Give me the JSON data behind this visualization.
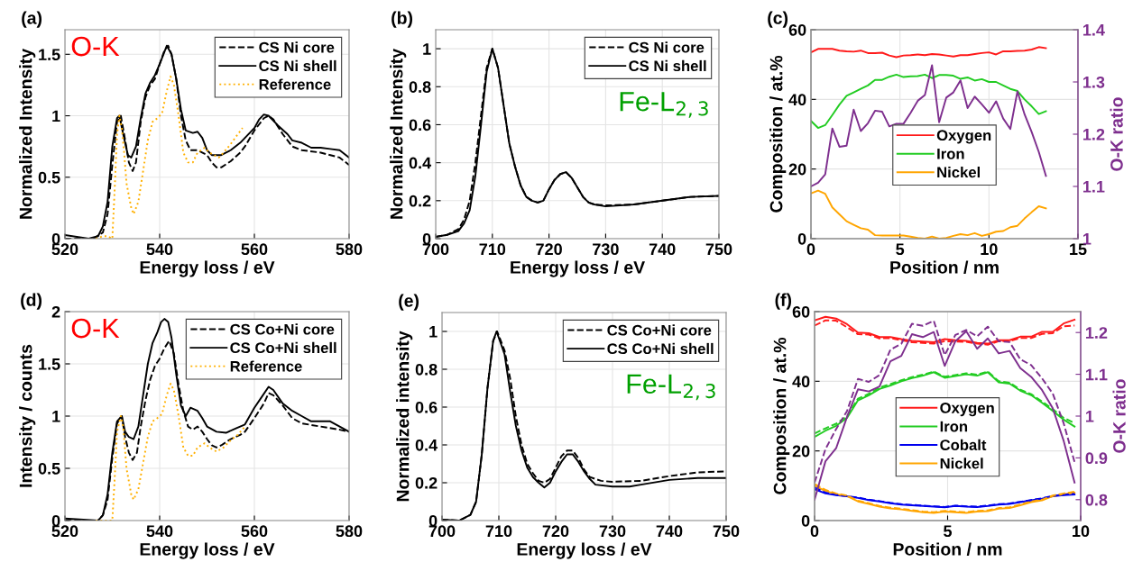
{
  "chart_data": [
    {
      "type": "line",
      "xlabel": "Energy loss / eV",
      "ylabel": "Normalized Intensity",
      "annotations": [
        "(a)",
        "O-K"
      ],
      "xlim": [
        520,
        580
      ],
      "xticks": [
        520,
        540,
        560,
        580
      ],
      "ylim": [
        0,
        1.7
      ],
      "yticks": [
        0,
        0.5,
        1,
        1.5
      ],
      "grid": true,
      "legend": "top right",
      "series": [
        {
          "name": "CS Ni core",
          "color": "#000000",
          "line_style": "dashed",
          "x": [
            520,
            526,
            528,
            529,
            530,
            531,
            531.8,
            532.5,
            533.5,
            534.3,
            535,
            536,
            537,
            538,
            539,
            540,
            541,
            541.8,
            542.5,
            543.5,
            544.5,
            545.5,
            546.5,
            548,
            550,
            551,
            552,
            553,
            555,
            557,
            558,
            560,
            562,
            563,
            564,
            566,
            568,
            570,
            574,
            578,
            580
          ],
          "values": [
            0,
            0,
            0.05,
            0.2,
            0.6,
            0.95,
            1.0,
            0.85,
            0.62,
            0.55,
            0.62,
            0.95,
            1.15,
            1.25,
            1.3,
            1.42,
            1.53,
            1.57,
            1.5,
            1.3,
            1.0,
            0.8,
            0.72,
            0.72,
            0.68,
            0.62,
            0.58,
            0.58,
            0.63,
            0.7,
            0.75,
            0.88,
            0.98,
            1.0,
            0.97,
            0.85,
            0.75,
            0.72,
            0.7,
            0.66,
            0.6
          ]
        },
        {
          "name": "CS Ni shell",
          "color": "#000000",
          "line_style": "solid",
          "x": [
            520,
            525,
            527,
            528,
            529,
            530,
            531,
            531.5,
            532.3,
            533.3,
            534,
            535,
            536,
            537,
            538,
            539,
            540,
            541,
            541.5,
            542.5,
            543.5,
            544.5,
            545.5,
            547,
            548,
            549,
            550,
            551,
            553,
            555,
            557,
            558,
            560,
            561,
            562,
            563,
            565,
            567,
            568,
            570,
            572,
            574,
            576,
            578,
            580
          ],
          "values": [
            0.03,
            0,
            0.02,
            0.1,
            0.3,
            0.75,
            0.98,
            1.0,
            0.85,
            0.68,
            0.66,
            0.75,
            0.98,
            1.18,
            1.27,
            1.33,
            1.42,
            1.52,
            1.57,
            1.5,
            1.3,
            1.05,
            0.88,
            0.86,
            0.87,
            0.82,
            0.72,
            0.68,
            0.68,
            0.72,
            0.78,
            0.82,
            0.9,
            0.97,
            1.01,
            1.0,
            0.92,
            0.85,
            0.8,
            0.78,
            0.74,
            0.74,
            0.73,
            0.72,
            0.66
          ]
        },
        {
          "name": "Reference",
          "color": "#ffb000",
          "line_style": "dotted",
          "x": [
            526.5,
            528,
            529,
            530,
            530.5,
            531,
            531.5,
            532,
            532.5,
            533,
            534,
            534.5,
            535.5,
            536.5,
            537.5,
            538.5,
            539.5,
            540.5,
            541.5,
            542.3,
            543,
            544,
            545,
            546,
            547,
            548,
            549.5,
            550.5,
            551.5,
            552.5,
            553.5,
            555,
            556.5,
            557.5
          ],
          "values": [
            0,
            0.02,
            0.02,
            0,
            0.4,
            0.85,
            1.0,
            0.9,
            0.7,
            0.45,
            0.25,
            0.2,
            0.3,
            0.55,
            0.8,
            0.95,
            0.98,
            1.02,
            1.2,
            1.32,
            1.25,
            1.0,
            0.7,
            0.62,
            0.62,
            0.7,
            0.74,
            0.7,
            0.68,
            0.66,
            0.7,
            0.77,
            0.85,
            0.9
          ]
        }
      ]
    },
    {
      "type": "line",
      "xlabel": "Energy loss / eV",
      "ylabel": "Normalized Intensity",
      "annotations": [
        "(b)",
        "Fe-L$_{2,3}$"
      ],
      "xlim": [
        700,
        750
      ],
      "xticks": [
        700,
        710,
        720,
        730,
        740,
        750
      ],
      "ylim": [
        0,
        1.1
      ],
      "yticks": [
        0,
        0.2,
        0.4,
        0.6,
        0.8,
        1
      ],
      "grid": true,
      "legend": "top right",
      "series": [
        {
          "name": "CS Ni core",
          "color": "#000000",
          "line_style": "dashed",
          "x": [
            700,
            702,
            704,
            705,
            706,
            707,
            708,
            709,
            710,
            711,
            712,
            713,
            714,
            715,
            716,
            717,
            718,
            719,
            720,
            721,
            722,
            723,
            724,
            725,
            726,
            727,
            728,
            730,
            735,
            740,
            745,
            750
          ],
          "values": [
            0.01,
            0.02,
            0.05,
            0.1,
            0.2,
            0.4,
            0.65,
            0.9,
            1.0,
            0.9,
            0.7,
            0.5,
            0.38,
            0.28,
            0.22,
            0.2,
            0.19,
            0.2,
            0.26,
            0.31,
            0.34,
            0.35,
            0.32,
            0.27,
            0.22,
            0.19,
            0.18,
            0.175,
            0.18,
            0.2,
            0.22,
            0.225
          ]
        },
        {
          "name": "CS Ni shell",
          "color": "#000000",
          "line_style": "solid",
          "x": [
            700,
            702,
            704,
            705,
            706,
            707,
            708,
            709,
            710,
            711,
            712,
            713,
            714,
            715,
            716,
            717,
            718,
            719,
            720,
            721,
            722,
            723,
            724,
            725,
            726,
            727,
            728,
            730,
            735,
            740,
            745,
            750
          ],
          "values": [
            0.01,
            0.02,
            0.04,
            0.08,
            0.15,
            0.33,
            0.6,
            0.88,
            1.0,
            0.9,
            0.7,
            0.5,
            0.38,
            0.28,
            0.22,
            0.2,
            0.19,
            0.2,
            0.26,
            0.31,
            0.34,
            0.35,
            0.32,
            0.27,
            0.22,
            0.19,
            0.18,
            0.17,
            0.18,
            0.2,
            0.22,
            0.225
          ]
        }
      ]
    },
    {
      "type": "line",
      "xlabel": "Position / nm",
      "ylabel": "Composition / at.%",
      "y2label": "O-K ratio",
      "annotations": [
        "(c)"
      ],
      "xlim": [
        0,
        15
      ],
      "xticks": [
        0,
        5,
        10,
        15
      ],
      "ylim": [
        0,
        60
      ],
      "yticks": [
        0,
        20,
        40,
        60
      ],
      "y2lim": [
        1,
        1.4
      ],
      "y2ticks": [
        1,
        1.1,
        1.2,
        1.3,
        1.4
      ],
      "grid": true,
      "legend": "center",
      "series": [
        {
          "name": "Oxygen",
          "color": "#ff1a1a",
          "line_style": "solid",
          "x": [
            0,
            0.4,
            0.8,
            1.2,
            1.6,
            2.0,
            2.4,
            2.8,
            3.2,
            3.6,
            4.0,
            4.4,
            4.8,
            5.2,
            5.6,
            6.0,
            6.4,
            6.8,
            7.2,
            7.6,
            8.0,
            8.4,
            8.8,
            9.2,
            9.6,
            10.0,
            10.4,
            10.8,
            11.2,
            11.6,
            12.0,
            12.4,
            12.8,
            13.2
          ],
          "values": [
            53.5,
            54.5,
            54.5,
            54.5,
            54,
            53.8,
            53.7,
            54,
            53.3,
            53.3,
            53.4,
            52.6,
            52.1,
            52.6,
            52.7,
            52.9,
            52.7,
            53,
            52.9,
            52.6,
            52.3,
            52.7,
            52.7,
            53,
            53.3,
            53.5,
            52.9,
            53.8,
            53.8,
            53.9,
            54,
            54.3,
            55,
            54.7
          ]
        },
        {
          "name": "Iron",
          "color": "#22cc22",
          "line_style": "solid",
          "x": [
            0,
            0.4,
            0.8,
            1.2,
            1.6,
            2.0,
            2.4,
            2.8,
            3.2,
            3.6,
            4.0,
            4.4,
            4.8,
            5.2,
            5.6,
            6.0,
            6.4,
            6.8,
            7.2,
            7.6,
            8.0,
            8.4,
            8.8,
            9.2,
            9.6,
            10.0,
            10.4,
            10.8,
            11.2,
            11.6,
            12.0,
            12.4,
            12.8,
            13.2
          ],
          "values": [
            33.8,
            31.8,
            32.6,
            35.5,
            38.5,
            41,
            42,
            43,
            44,
            45.6,
            45.6,
            46.5,
            47.1,
            46.4,
            46.6,
            46.7,
            47.1,
            46.1,
            47,
            47,
            46.8,
            45.9,
            46.3,
            45.4,
            45.8,
            45,
            45,
            44,
            43,
            42.4,
            40,
            38,
            35.8,
            36.6
          ]
        },
        {
          "name": "Nickel",
          "color": "#ffa500",
          "line_style": "solid",
          "x": [
            0,
            0.4,
            0.8,
            1.2,
            1.6,
            2.0,
            2.4,
            2.8,
            3.2,
            3.6,
            4.0,
            4.4,
            4.8,
            5.2,
            5.6,
            6.0,
            6.4,
            6.8,
            7.2,
            7.6,
            8.0,
            8.4,
            8.8,
            9.2,
            9.6,
            10.0,
            10.4,
            10.8,
            11.2,
            11.6,
            12.0,
            12.4,
            12.8,
            13.2
          ],
          "values": [
            13,
            13.8,
            12.9,
            9,
            7,
            5,
            4,
            3,
            2.6,
            1,
            0.9,
            0.9,
            0.9,
            0.9,
            0.6,
            0.2,
            0,
            0.6,
            0,
            0.2,
            0.8,
            1.3,
            1,
            1.6,
            0.8,
            1.3,
            2,
            2.2,
            3.3,
            3.7,
            5.8,
            7.6,
            9.3,
            8.7
          ]
        },
        {
          "color": "#7e2f8e",
          "line_style": "solid",
          "axis": "y2",
          "x": [
            0,
            0.4,
            0.8,
            1.2,
            1.6,
            2.0,
            2.4,
            2.8,
            3.2,
            3.6,
            4.0,
            4.4,
            4.8,
            5.2,
            5.6,
            6.0,
            6.4,
            6.8,
            7.2,
            7.6,
            8.0,
            8.4,
            8.8,
            9.2,
            9.6,
            10.0,
            10.4,
            10.8,
            11.2,
            11.6,
            12.0,
            12.4,
            12.8,
            13.2
          ],
          "values": [
            1.1,
            1.107,
            1.123,
            1.211,
            1.176,
            1.178,
            1.247,
            1.206,
            1.221,
            1.245,
            1.243,
            1.215,
            1.22,
            1.22,
            1.241,
            1.264,
            1.275,
            1.332,
            1.223,
            1.27,
            1.28,
            1.303,
            1.25,
            1.272,
            1.257,
            1.241,
            1.263,
            1.23,
            1.21,
            1.282,
            1.238,
            1.204,
            1.166,
            1.12
          ]
        }
      ]
    },
    {
      "type": "line",
      "xlabel": "Energy loss / eV",
      "ylabel": "Intensity / counts",
      "annotations": [
        "(d)",
        "O-K"
      ],
      "xlim": [
        520,
        580
      ],
      "xticks": [
        520,
        540,
        560,
        580
      ],
      "ylim": [
        0,
        2
      ],
      "yticks": [
        0,
        0.5,
        1,
        1.5,
        2
      ],
      "grid": true,
      "legend": "top right",
      "series": [
        {
          "name": "CS Co+Ni core",
          "color": "#000000",
          "line_style": "dashed",
          "x": [
            520,
            527,
            528,
            529,
            530,
            531,
            532,
            532.7,
            533.5,
            534.3,
            535.2,
            536,
            537,
            538,
            539,
            540,
            541,
            542,
            543,
            544,
            545,
            546,
            547,
            548,
            549,
            550,
            551,
            552,
            553,
            555,
            557,
            558,
            560,
            562,
            563,
            564,
            566,
            568,
            570,
            574,
            578,
            580
          ],
          "values": [
            0,
            0,
            0.05,
            0.2,
            0.6,
            0.93,
            1.0,
            0.8,
            0.65,
            0.58,
            0.65,
            0.9,
            1.15,
            1.35,
            1.48,
            1.55,
            1.65,
            1.72,
            1.6,
            1.3,
            1.05,
            0.9,
            0.87,
            0.9,
            0.85,
            0.78,
            0.72,
            0.7,
            0.72,
            0.78,
            0.82,
            0.85,
            0.98,
            1.12,
            1.22,
            1.2,
            1.1,
            0.98,
            0.93,
            0.9,
            0.87,
            0.85
          ]
        },
        {
          "name": "CS Co+Ni shell",
          "color": "#000000",
          "line_style": "solid",
          "x": [
            520,
            527,
            528,
            529,
            530,
            531,
            532,
            532.7,
            533.5,
            534.5,
            535.5,
            536.5,
            537.5,
            538.5,
            539.5,
            540.3,
            541,
            541.8,
            542.5,
            543.5,
            544.5,
            545.5,
            546.5,
            548,
            549,
            550,
            552,
            554,
            556,
            558,
            560,
            561.5,
            563,
            564,
            566,
            568,
            570,
            572,
            574,
            576,
            578,
            580
          ],
          "values": [
            0.02,
            0,
            0.05,
            0.25,
            0.65,
            0.95,
            1.0,
            0.85,
            0.8,
            0.78,
            0.9,
            1.2,
            1.5,
            1.7,
            1.8,
            1.9,
            1.93,
            1.9,
            1.75,
            1.4,
            1.1,
            1.0,
            1.08,
            1.05,
            0.98,
            0.9,
            0.85,
            0.84,
            0.88,
            0.92,
            1.08,
            1.18,
            1.28,
            1.25,
            1.12,
            1.05,
            1.0,
            0.95,
            0.95,
            0.95,
            0.9,
            0.85
          ]
        },
        {
          "name": "Reference",
          "color": "#ffb000",
          "line_style": "dotted",
          "x": [
            526.5,
            530,
            530.5,
            531,
            531.8,
            532.3,
            533,
            534,
            534.5,
            535.5,
            536.5,
            537.5,
            538.5,
            539.5,
            540.5,
            541.5,
            542.3,
            543,
            544,
            545,
            546,
            547,
            548,
            549.5,
            550.5,
            552,
            553.5,
            555,
            556.5,
            558
          ],
          "values": [
            0,
            0,
            0.4,
            0.85,
            1.0,
            0.9,
            0.5,
            0.25,
            0.2,
            0.3,
            0.55,
            0.8,
            0.95,
            0.98,
            1.02,
            1.2,
            1.31,
            1.25,
            1.0,
            0.7,
            0.62,
            0.62,
            0.7,
            0.74,
            0.7,
            0.66,
            0.7,
            0.77,
            0.82,
            0.9
          ]
        }
      ]
    },
    {
      "type": "line",
      "xlabel": "Energy loss / eV",
      "ylabel": "Normalized intensity",
      "annotations": [
        "(e)",
        "Fe-L$_{2,3}$"
      ],
      "xlim": [
        700,
        750
      ],
      "xticks": [
        700,
        710,
        720,
        730,
        740,
        750
      ],
      "ylim": [
        0,
        1.1
      ],
      "yticks": [
        0,
        0.2,
        0.4,
        0.6,
        0.8,
        1
      ],
      "grid": true,
      "legend": "top right",
      "series": [
        {
          "name": "CS Co+Ni core",
          "color": "#000000",
          "line_style": "dashed",
          "x": [
            700,
            703,
            705,
            706,
            707,
            708,
            709,
            709.7,
            711,
            712,
            713,
            714,
            715,
            716,
            717,
            718,
            719,
            720,
            721,
            722,
            723,
            724,
            725,
            726,
            728,
            730,
            735,
            740,
            745,
            750
          ],
          "values": [
            0.005,
            0,
            0.03,
            0.1,
            0.35,
            0.7,
            0.95,
            1.0,
            0.9,
            0.75,
            0.55,
            0.4,
            0.3,
            0.25,
            0.21,
            0.2,
            0.22,
            0.28,
            0.34,
            0.37,
            0.37,
            0.33,
            0.27,
            0.23,
            0.21,
            0.205,
            0.21,
            0.235,
            0.255,
            0.26
          ]
        },
        {
          "name": "CS Co+Ni shell",
          "color": "#000000",
          "line_style": "solid",
          "x": [
            700,
            703,
            705,
            706,
            707,
            708,
            709,
            709.6,
            711,
            712,
            713,
            714,
            715,
            716,
            717,
            718,
            719,
            720,
            721,
            722,
            723,
            724,
            725,
            726,
            727,
            730,
            733,
            735,
            740,
            745,
            750
          ],
          "values": [
            0.005,
            0,
            0.03,
            0.1,
            0.35,
            0.7,
            0.95,
            1.0,
            0.88,
            0.68,
            0.5,
            0.37,
            0.28,
            0.23,
            0.2,
            0.175,
            0.2,
            0.26,
            0.31,
            0.35,
            0.35,
            0.31,
            0.26,
            0.22,
            0.19,
            0.18,
            0.18,
            0.19,
            0.215,
            0.225,
            0.225
          ]
        }
      ]
    },
    {
      "type": "line",
      "xlabel": "Position / nm",
      "ylabel": "Composition / at.%",
      "y2label": "O-K ratio",
      "annotations": [
        "(f)"
      ],
      "xlim": [
        0,
        10
      ],
      "xticks": [
        0,
        5,
        10
      ],
      "ylim": [
        0,
        60
      ],
      "yticks": [
        0,
        20,
        40,
        60
      ],
      "y2lim": [
        0.75,
        1.25
      ],
      "y2ticks": [
        0.8,
        0.9,
        1,
        1.1,
        1.2
      ],
      "grid": true,
      "legend": "center",
      "series": [
        {
          "name": "Oxygen",
          "color": "#ff1a1a",
          "line_style": "solid",
          "x": [
            0,
            0.41,
            0.81,
            1.22,
            1.63,
            2.04,
            2.44,
            2.85,
            3.26,
            3.66,
            4.07,
            4.48,
            4.89,
            5.29,
            5.7,
            6.11,
            6.51,
            6.92,
            7.33,
            7.73,
            8.14,
            8.55,
            8.95,
            9.36,
            9.77
          ],
          "values": [
            57.5,
            58.5,
            58,
            56.4,
            54,
            53.8,
            52.7,
            52.7,
            52.1,
            51.6,
            51.4,
            51.2,
            52.1,
            51.8,
            51.6,
            51,
            50.8,
            51.8,
            51.8,
            52.8,
            52.8,
            54.2,
            54.2,
            56.6,
            57.7
          ]
        },
        {
          "name": "Iron",
          "color": "#22cc22",
          "line_style": "solid",
          "x": [
            0,
            0.41,
            0.81,
            1.22,
            1.63,
            2.04,
            2.44,
            2.85,
            3.26,
            3.66,
            4.07,
            4.48,
            4.89,
            5.29,
            5.7,
            6.11,
            6.51,
            6.92,
            7.33,
            7.73,
            8.14,
            8.55,
            8.95,
            9.36,
            9.77
          ],
          "values": [
            24,
            25.8,
            27.2,
            29.5,
            34.5,
            36,
            37.8,
            38.8,
            40,
            40.9,
            41.6,
            42.6,
            41,
            41.5,
            42,
            41.6,
            42.6,
            39.7,
            39.3,
            37.3,
            36,
            33.8,
            31.5,
            29,
            27
          ]
        },
        {
          "name": "Cobalt",
          "color": "#0000ee",
          "line_style": "solid",
          "x": [
            0,
            0.41,
            0.81,
            1.22,
            1.63,
            2.04,
            2.44,
            2.85,
            3.26,
            3.66,
            4.07,
            4.48,
            4.89,
            5.29,
            5.7,
            6.11,
            6.51,
            6.92,
            7.33,
            7.73,
            8.14,
            8.55,
            8.95,
            9.36,
            9.77
          ],
          "values": [
            9,
            7.8,
            7.3,
            7,
            6.5,
            5.9,
            5.5,
            5,
            4.6,
            4.4,
            4.2,
            4,
            3.8,
            4.2,
            4,
            3.9,
            4.2,
            4.6,
            4.8,
            5.3,
            5.8,
            6.3,
            7,
            7.3,
            7.5
          ]
        },
        {
          "name": "Nickel",
          "color": "#ffa500",
          "line_style": "solid",
          "x": [
            0,
            0.41,
            0.81,
            1.22,
            1.63,
            2.04,
            2.44,
            2.85,
            3.26,
            3.66,
            4.07,
            4.48,
            4.89,
            5.29,
            5.7,
            6.11,
            6.51,
            6.92,
            7.33,
            7.73,
            8.14,
            8.55,
            8.95,
            9.36,
            9.77
          ],
          "values": [
            10,
            8.5,
            7.6,
            7,
            5.5,
            4.8,
            4,
            3.5,
            3.2,
            2.8,
            2.4,
            2.2,
            2.6,
            2.4,
            2.2,
            2.6,
            2.7,
            3.4,
            3.6,
            4.4,
            5.3,
            5.8,
            7,
            7.6,
            8
          ]
        },
        {
          "color": "#ff1a1a",
          "line_style": "dashed",
          "x": [
            0,
            0.41,
            0.81,
            1.22,
            1.63,
            2.04,
            2.44,
            2.85,
            3.26,
            3.66,
            4.07,
            4.48,
            4.89,
            5.29,
            5.7,
            6.11,
            6.51,
            6.92,
            7.33,
            7.73,
            8.14,
            8.55,
            8.95,
            9.36,
            9.77
          ],
          "values": [
            56,
            57.5,
            57.4,
            55.5,
            53.5,
            53.4,
            52.3,
            52.4,
            51.8,
            51.2,
            51,
            50.8,
            51.5,
            51.4,
            51.3,
            50.8,
            50.5,
            51.5,
            51.5,
            52.4,
            52.4,
            53.6,
            53.8,
            55.8,
            56
          ]
        },
        {
          "color": "#22cc22",
          "line_style": "dashed",
          "x": [
            0,
            0.41,
            0.81,
            1.22,
            1.63,
            2.04,
            2.44,
            2.85,
            3.26,
            3.66,
            4.07,
            4.48,
            4.89,
            5.29,
            5.7,
            6.11,
            6.51,
            6.92,
            7.33,
            7.73,
            8.14,
            8.55,
            8.95,
            9.36,
            9.77
          ],
          "values": [
            25,
            26.5,
            27.8,
            30,
            35,
            36.4,
            38.2,
            39.2,
            40.3,
            41.2,
            41.9,
            42.8,
            41.3,
            41.8,
            42.3,
            41.9,
            42.8,
            40,
            39.6,
            37.6,
            36.3,
            34.2,
            32,
            29.5,
            28
          ]
        },
        {
          "color": "#0000ee",
          "line_style": "dashed",
          "x": [
            0,
            0.41,
            0.81,
            1.22,
            1.63,
            2.04,
            2.44,
            2.85,
            3.26,
            3.66,
            4.07,
            4.48,
            4.89,
            5.29,
            5.7,
            6.11,
            6.51,
            6.92,
            7.33,
            7.73,
            8.14,
            8.55,
            8.95,
            9.36,
            9.77
          ],
          "values": [
            9.5,
            8,
            7.4,
            7,
            6.6,
            6,
            5.6,
            5.1,
            4.7,
            4.5,
            4.3,
            4.1,
            3.9,
            4.3,
            4.1,
            4,
            4.3,
            4.7,
            4.9,
            5.4,
            5.9,
            6.4,
            7.1,
            7.4,
            7.7
          ]
        },
        {
          "color": "#ffa500",
          "line_style": "dashed",
          "x": [
            0,
            0.41,
            0.81,
            1.22,
            1.63,
            2.04,
            2.44,
            2.85,
            3.26,
            3.66,
            4.07,
            4.48,
            4.89,
            5.29,
            5.7,
            6.11,
            6.51,
            6.92,
            7.33,
            7.73,
            8.14,
            8.55,
            8.95,
            9.36,
            9.77
          ],
          "values": [
            10.5,
            8.8,
            7.8,
            7.2,
            5.7,
            5,
            4.2,
            3.7,
            3.4,
            3,
            2.6,
            2.4,
            2.8,
            2.6,
            2.4,
            2.8,
            2.9,
            3.6,
            3.8,
            4.6,
            5.5,
            6,
            7.2,
            7.8,
            8.3
          ]
        },
        {
          "color": "#7e2f8e",
          "line_style": "solid",
          "axis": "y2",
          "x": [
            0,
            0.41,
            0.81,
            1.22,
            1.63,
            2.04,
            2.44,
            2.85,
            3.26,
            3.66,
            4.07,
            4.48,
            4.89,
            5.29,
            5.7,
            6.11,
            6.51,
            6.92,
            7.33,
            7.73,
            8.14,
            8.55,
            8.95,
            9.36,
            9.77
          ],
          "values": [
            0.8,
            0.892,
            0.923,
            0.998,
            1.064,
            1.059,
            1.071,
            1.131,
            1.144,
            1.196,
            1.189,
            1.201,
            1.12,
            1.179,
            1.203,
            1.161,
            1.186,
            1.15,
            1.156,
            1.115,
            1.094,
            1.062,
            1.019,
            0.941,
            0.841
          ]
        },
        {
          "color": "#7e2f8e",
          "line_style": "dashed",
          "axis": "y2",
          "x": [
            0,
            0.41,
            0.81,
            1.22,
            1.63,
            2.04,
            2.44,
            2.85,
            3.26,
            3.66,
            4.07,
            4.48,
            4.89,
            5.29,
            5.7,
            6.11,
            6.51,
            6.92,
            7.33,
            7.73,
            8.14,
            8.55,
            8.95,
            9.36,
            9.77
          ],
          "values": [
            0.841,
            0.921,
            0.969,
            1.012,
            1.089,
            1.082,
            1.098,
            1.159,
            1.173,
            1.221,
            1.216,
            1.228,
            1.146,
            1.194,
            1.206,
            1.191,
            1.214,
            1.179,
            1.177,
            1.136,
            1.122,
            1.09,
            1.054,
            0.983,
            0.89
          ]
        }
      ]
    }
  ]
}
